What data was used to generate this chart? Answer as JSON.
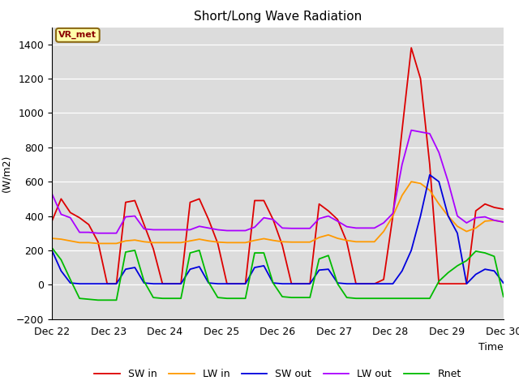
{
  "title": "Short/Long Wave Radiation",
  "xlabel": "Time",
  "ylabel": "(W/m2)",
  "annotation": "VR_met",
  "ylim": [
    -200,
    1500
  ],
  "yticks": [
    -200,
    0,
    200,
    400,
    600,
    800,
    1000,
    1200,
    1400
  ],
  "bg_color": "#dcdcdc",
  "series": {
    "SW_in": {
      "color": "#dd0000",
      "label": "SW in"
    },
    "LW_in": {
      "color": "#ff9900",
      "label": "LW in"
    },
    "SW_out": {
      "color": "#0000dd",
      "label": "SW out"
    },
    "LW_out": {
      "color": "#aa00ff",
      "label": "LW out"
    },
    "Rnet": {
      "color": "#00bb00",
      "label": "Rnet"
    }
  },
  "x_ticks": [
    0,
    24,
    48,
    72,
    96,
    120,
    144,
    168,
    192
  ],
  "x_tick_labels": [
    "Dec 22",
    "Dec 23",
    "Dec 24",
    "Dec 25",
    "Dec 26",
    "Dec 27",
    "Dec 28",
    "Dec 29",
    "Dec 30"
  ],
  "SW_in": [
    370,
    500,
    420,
    390,
    350,
    250,
    5,
    5,
    480,
    490,
    350,
    210,
    5,
    5,
    5,
    480,
    500,
    380,
    240,
    5,
    5,
    5,
    490,
    490,
    380,
    230,
    5,
    5,
    5,
    470,
    430,
    380,
    250,
    5,
    5,
    5,
    30,
    400,
    900,
    1380,
    1200,
    700,
    5,
    5,
    5,
    5,
    430,
    470,
    450,
    440
  ],
  "LW_in": [
    270,
    265,
    255,
    245,
    245,
    240,
    240,
    240,
    255,
    260,
    250,
    245,
    245,
    245,
    245,
    255,
    265,
    255,
    248,
    245,
    245,
    245,
    258,
    268,
    258,
    250,
    248,
    248,
    248,
    275,
    290,
    270,
    258,
    250,
    250,
    250,
    310,
    400,
    520,
    600,
    590,
    550,
    470,
    400,
    340,
    310,
    330,
    370,
    375,
    365
  ],
  "SW_out": [
    200,
    80,
    10,
    5,
    5,
    5,
    5,
    5,
    90,
    100,
    10,
    5,
    5,
    5,
    5,
    90,
    105,
    10,
    5,
    5,
    5,
    5,
    100,
    110,
    10,
    5,
    5,
    5,
    5,
    85,
    90,
    10,
    5,
    5,
    5,
    5,
    5,
    5,
    80,
    200,
    400,
    640,
    600,
    400,
    300,
    5,
    60,
    90,
    80,
    10
  ],
  "LW_out": [
    530,
    410,
    390,
    305,
    305,
    300,
    300,
    300,
    395,
    400,
    325,
    320,
    320,
    320,
    320,
    320,
    340,
    330,
    320,
    315,
    315,
    315,
    335,
    390,
    380,
    330,
    328,
    328,
    328,
    385,
    400,
    370,
    338,
    330,
    330,
    330,
    360,
    415,
    700,
    900,
    890,
    880,
    770,
    600,
    400,
    360,
    390,
    395,
    375,
    365
  ],
  "Rnet": [
    215,
    145,
    30,
    -80,
    -85,
    -90,
    -90,
    -90,
    190,
    200,
    20,
    -75,
    -80,
    -80,
    -80,
    185,
    200,
    15,
    -75,
    -80,
    -80,
    -80,
    185,
    185,
    10,
    -70,
    -75,
    -75,
    -75,
    150,
    170,
    5,
    -75,
    -80,
    -80,
    -80,
    -80,
    -80,
    -80,
    -80,
    -80,
    -80,
    20,
    70,
    110,
    140,
    195,
    185,
    165,
    -70
  ]
}
